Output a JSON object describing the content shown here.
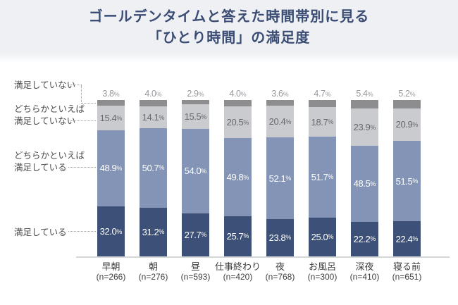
{
  "title": {
    "line1": "ゴールデンタイムと答えた時間帯別に見る",
    "line2": "「ひとり時間」の満足度"
  },
  "colors": {
    "title_text": "#3b4d74",
    "title_band_bg": "#eef0f3",
    "above_label_text": "#97999c",
    "legend_text": "#4b4b4b",
    "axis_line": "#d4d7da"
  },
  "legend": {
    "items": [
      {
        "lines": [
          "満足していない",
          ""
        ]
      },
      {
        "lines": [
          "どちらかといえば",
          "満足していない"
        ]
      },
      {
        "lines": [
          "どちらかといえば",
          "満足している"
        ]
      },
      {
        "lines": [
          "満足している",
          ""
        ]
      }
    ]
  },
  "chart_data": {
    "type": "bar",
    "stacked": true,
    "unit": "%",
    "ylim": [
      0,
      100
    ],
    "legend_position": "left",
    "grid": false,
    "title": "ゴールデンタイムと答えた時間帯別に見る「ひとり時間」の満足度",
    "categories": [
      "早朝",
      "朝",
      "昼",
      "仕事終わり",
      "夜",
      "お風呂",
      "深夜",
      "寝る前"
    ],
    "sample_labels": [
      "(n=266)",
      "(n=276)",
      "(n=593)",
      "(n=420)",
      "(n=768)",
      "(n=300)",
      "(n=410)",
      "(n=651)"
    ],
    "series": [
      {
        "key": "not_satisfied",
        "name": "満足していない",
        "color": "#8d8d8f",
        "value_label_position": "above",
        "values": [
          3.8,
          4.0,
          2.9,
          4.0,
          3.6,
          4.7,
          5.4,
          5.2
        ]
      },
      {
        "key": "somewhat_not_satisfied",
        "name": "どちらかといえば満足していない",
        "color": "#cacbcf",
        "value_label_position": "inside",
        "values": [
          15.4,
          14.1,
          15.5,
          20.5,
          20.4,
          18.7,
          23.9,
          20.9
        ]
      },
      {
        "key": "somewhat_satisfied",
        "name": "どちらかといえば満足している",
        "color": "#8394b7",
        "value_label_position": "inside",
        "values": [
          48.9,
          50.7,
          54.0,
          49.8,
          52.1,
          51.7,
          48.5,
          51.5
        ]
      },
      {
        "key": "satisfied",
        "name": "満足している",
        "color": "#3d5078",
        "value_label_position": "inside",
        "values": [
          32.0,
          31.2,
          27.7,
          25.7,
          23.8,
          25.0,
          22.2,
          22.4
        ]
      }
    ]
  }
}
